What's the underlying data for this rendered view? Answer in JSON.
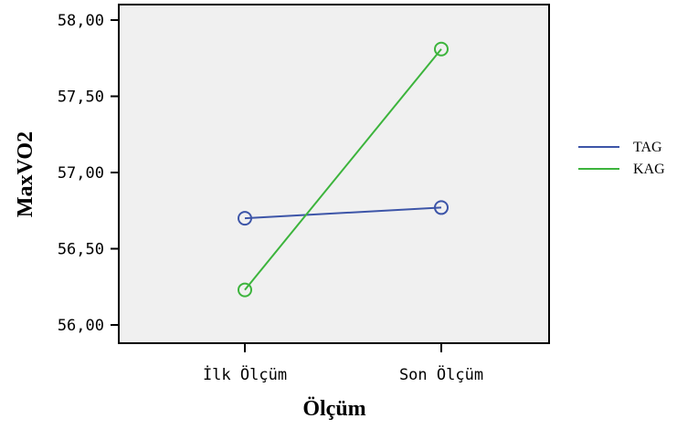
{
  "chart_data": {
    "type": "line",
    "xlabel": "Ölçüm",
    "ylabel": "MaxVO2",
    "categories": [
      "İlk Ölçüm",
      "Son Ölçüm"
    ],
    "ylim": [
      56.0,
      58.0
    ],
    "yticks": [
      56.0,
      56.5,
      57.0,
      57.5,
      58.0
    ],
    "ytick_labels": [
      "56,00",
      "56,50",
      "57,00",
      "57,50",
      "58,00"
    ],
    "series": [
      {
        "name": "TAG",
        "values": [
          56.7,
          56.77
        ],
        "color": "#3d55a8"
      },
      {
        "name": "KAG",
        "values": [
          56.23,
          57.81
        ],
        "color": "#3cb43c"
      }
    ],
    "legend_position": "right",
    "grid": false,
    "plot_background": "#f0f0f0"
  }
}
